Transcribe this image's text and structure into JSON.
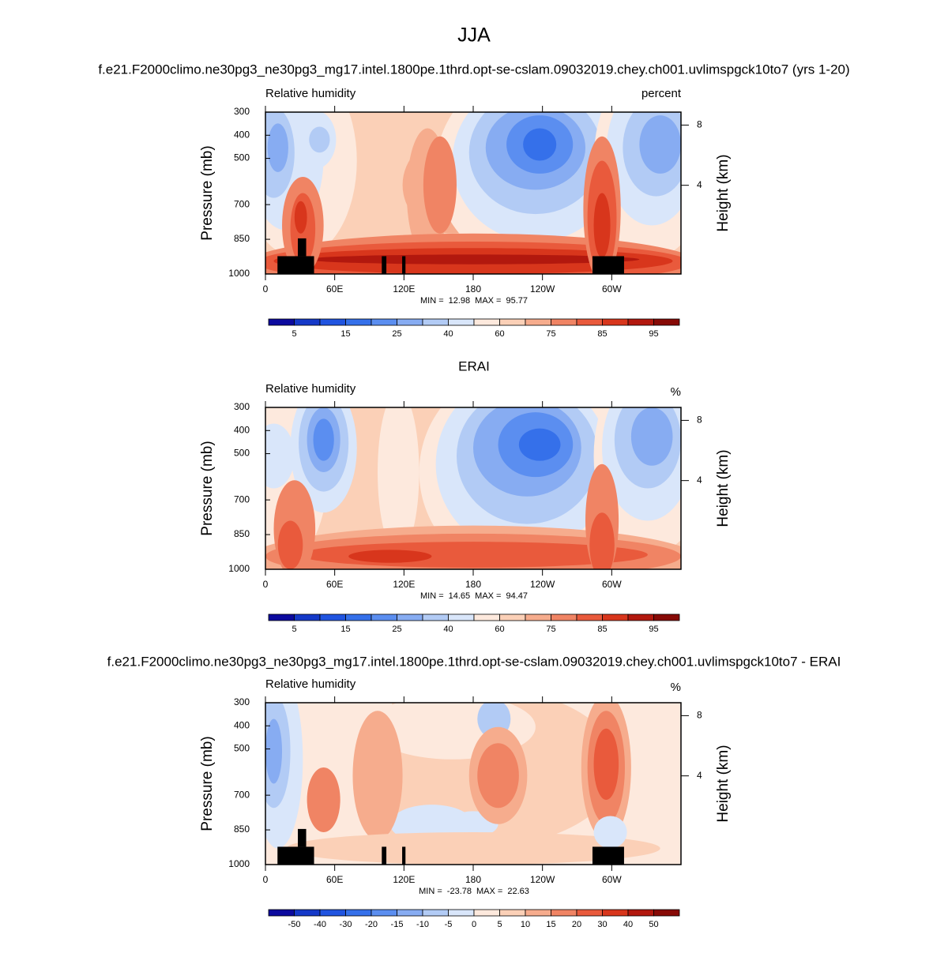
{
  "title": "JJA",
  "subtitle": "f.e21.F2000climo.ne30pg3_ne30pg3_mg17.intel.1800pe.1thrd.opt-se-cslam.09032019.chey.ch001.uvlimspgck10to7 (yrs 1-20)",
  "chart_data": [
    {
      "type": "contour",
      "left_label": "Relative humidity",
      "right_label": "percent",
      "ylabel": "Pressure (mb)",
      "y2label": "Height (km)",
      "ylim": [
        1000,
        300
      ],
      "yticks": [
        300,
        400,
        500,
        700,
        850,
        1000
      ],
      "y2ticks": [
        8,
        4
      ],
      "xlim": [
        0,
        360
      ],
      "xticks": [
        0,
        {
          "value": 60,
          "label": "60E"
        },
        {
          "value": 120,
          "label": "120E"
        },
        180,
        {
          "value": 240,
          "label": "120W"
        },
        {
          "value": 300,
          "label": "60W"
        }
      ],
      "min_label": "MIN =",
      "min": 12.98,
      "max_label": "MAX =",
      "max": 95.77,
      "colorbar": {
        "colors": [
          "#0c0a9e",
          "#1539c8",
          "#2054e0",
          "#3570ea",
          "#5b8ef0",
          "#87acf2",
          "#b2cbf5",
          "#d9e6fa",
          "#fde9dd",
          "#fbd0b7",
          "#f6ac8d",
          "#f08464",
          "#e95a3c",
          "#d8361c",
          "#b2180e",
          "#870a06"
        ],
        "levels": [
          5,
          null,
          15,
          null,
          25,
          null,
          40,
          null,
          60,
          null,
          75,
          null,
          85,
          null,
          95
        ]
      }
    },
    {
      "type": "contour",
      "title": "ERAI",
      "left_label": "Relative humidity",
      "right_label": "%",
      "ylabel": "Pressure (mb)",
      "y2label": "Height (km)",
      "ylim": [
        1000,
        300
      ],
      "yticks": [
        300,
        400,
        500,
        700,
        850,
        1000
      ],
      "y2ticks": [
        8,
        4
      ],
      "xlim": [
        0,
        360
      ],
      "xticks": [
        0,
        {
          "value": 60,
          "label": "60E"
        },
        {
          "value": 120,
          "label": "120E"
        },
        180,
        {
          "value": 240,
          "label": "120W"
        },
        {
          "value": 300,
          "label": "60W"
        }
      ],
      "min_label": "MIN =",
      "min": 14.65,
      "max_label": "MAX =",
      "max": 94.47,
      "colorbar": {
        "colors": [
          "#0c0a9e",
          "#1539c8",
          "#2054e0",
          "#3570ea",
          "#5b8ef0",
          "#87acf2",
          "#b2cbf5",
          "#d9e6fa",
          "#fde9dd",
          "#fbd0b7",
          "#f6ac8d",
          "#f08464",
          "#e95a3c",
          "#d8361c",
          "#b2180e",
          "#870a06"
        ],
        "levels": [
          5,
          null,
          15,
          null,
          25,
          null,
          40,
          null,
          60,
          null,
          75,
          null,
          85,
          null,
          95
        ]
      }
    },
    {
      "type": "contour",
      "title": "f.e21.F2000climo.ne30pg3_ne30pg3_mg17.intel.1800pe.1thrd.opt-se-cslam.09032019.chey.ch001.uvlimspgck10to7 - ERAI",
      "left_label": "Relative humidity",
      "right_label": "%",
      "ylabel": "Pressure (mb)",
      "y2label": "Height (km)",
      "ylim": [
        1000,
        300
      ],
      "yticks": [
        300,
        400,
        500,
        700,
        850,
        1000
      ],
      "y2ticks": [
        8,
        4
      ],
      "xlim": [
        0,
        360
      ],
      "xticks": [
        0,
        {
          "value": 60,
          "label": "60E"
        },
        {
          "value": 120,
          "label": "120E"
        },
        180,
        {
          "value": 240,
          "label": "120W"
        },
        {
          "value": 300,
          "label": "60W"
        }
      ],
      "min_label": "MIN =",
      "min": -23.78,
      "max_label": "MAX =",
      "max": 22.63,
      "colorbar": {
        "colors": [
          "#0c0a9e",
          "#1539c8",
          "#2054e0",
          "#3570ea",
          "#5b8ef0",
          "#87acf2",
          "#b2cbf5",
          "#d9e6fa",
          "#fde9dd",
          "#fbd0b7",
          "#f6ac8d",
          "#f08464",
          "#e95a3c",
          "#d8361c",
          "#b2180e",
          "#870a06"
        ],
        "levels": [
          -50,
          -40,
          -30,
          -20,
          -15,
          -10,
          -5,
          0,
          5,
          10,
          15,
          20,
          30,
          40,
          50
        ]
      }
    }
  ]
}
